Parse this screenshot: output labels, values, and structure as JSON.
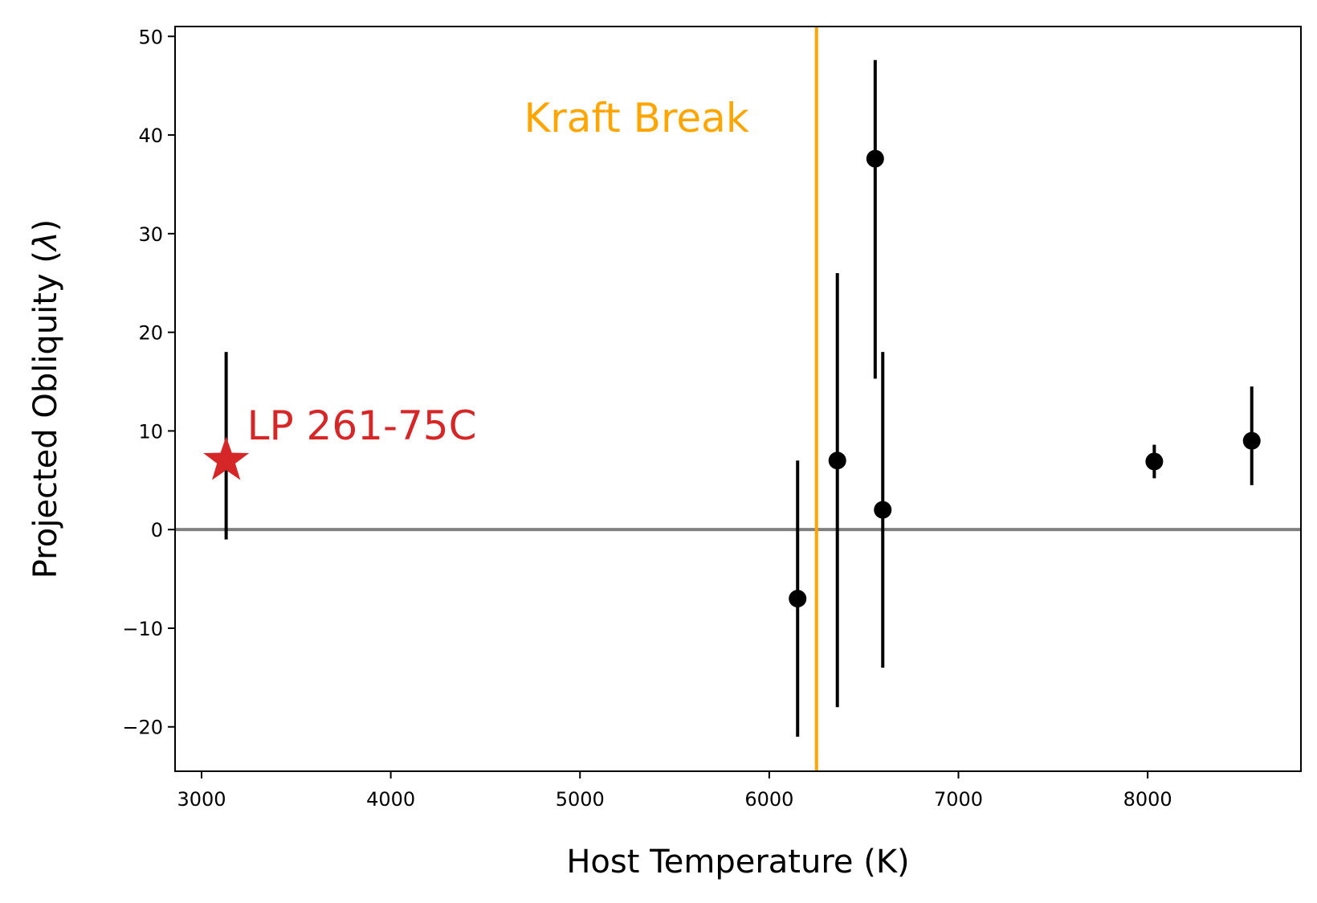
{
  "chart_data": {
    "type": "scatter",
    "xlabel": "Host Temperature (K)",
    "ylabel": "Projected Obliquity (",
    "ylabel_symbol": "λ",
    "ylabel_close": ")",
    "xlim": [
      2860,
      8810
    ],
    "ylim": [
      -24.5,
      51
    ],
    "xticks": [
      3000,
      4000,
      5000,
      6000,
      7000,
      8000
    ],
    "yticks": [
      -20,
      -10,
      0,
      10,
      20,
      30,
      40,
      50
    ],
    "grid": false,
    "points": [
      {
        "x": 6150,
        "y": -7,
        "yerr_low": 14,
        "yerr_high": 14
      },
      {
        "x": 6360,
        "y": 7,
        "yerr_low": 25,
        "yerr_high": 19
      },
      {
        "x": 6560,
        "y": 37.6,
        "yerr_low": 22.3,
        "yerr_high": 10
      },
      {
        "x": 6600,
        "y": 2,
        "yerr_low": 16,
        "yerr_high": 16
      },
      {
        "x": 8035,
        "y": 6.9,
        "yerr_low": 1.7,
        "yerr_high": 1.7
      },
      {
        "x": 8550,
        "y": 9,
        "yerr_low": 4.5,
        "yerr_high": 5.5
      }
    ],
    "highlight": {
      "label": "LP 261-75C",
      "x": 3130,
      "y": 7,
      "yerr_low": 8,
      "yerr_high": 11,
      "color": "#d62728"
    },
    "reference_line": {
      "y": 0,
      "color": "#808080"
    },
    "kraft_break": {
      "x": 6250,
      "label": "Kraft Break",
      "color": "#ffa500"
    },
    "marker_color": "#000000"
  }
}
